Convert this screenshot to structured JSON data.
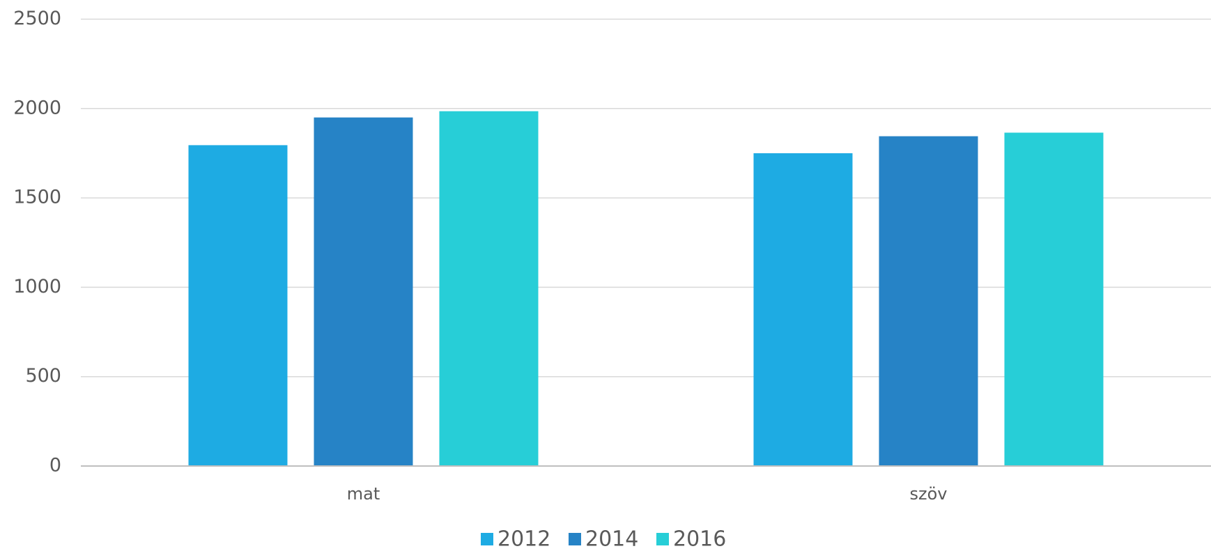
{
  "chart_data": {
    "type": "bar",
    "categories": [
      "mat",
      "szöv"
    ],
    "series": [
      {
        "name": "2012",
        "color": "#1eabe3",
        "values": [
          1795,
          1750
        ]
      },
      {
        "name": "2014",
        "color": "#2683c6",
        "values": [
          1950,
          1845
        ]
      },
      {
        "name": "2016",
        "color": "#27ced7",
        "values": [
          1985,
          1865
        ]
      }
    ],
    "ylim": [
      0,
      2500
    ],
    "yticks": [
      0,
      500,
      1000,
      1500,
      2000,
      2500
    ],
    "grid": true,
    "legend": "bottom"
  }
}
